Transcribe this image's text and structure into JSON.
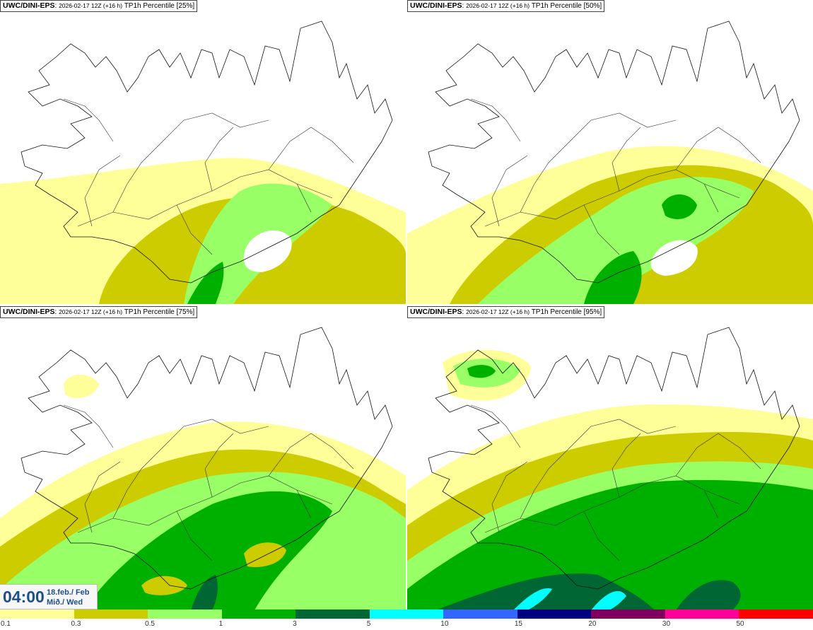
{
  "panels": [
    {
      "model": "UWC/DINI-EPS",
      "run": "2026-02-17 12Z (+16 h)",
      "field": "TP1h Percentile [25%]",
      "level": 0
    },
    {
      "model": "UWC/DINI-EPS",
      "run": "2026-02-17 12Z (+16 h)",
      "field": "TP1h Percentile [50%]",
      "level": 1
    },
    {
      "model": "UWC/DINI-EPS",
      "run": "2026-02-17 12Z (+16 h)",
      "field": "TP1h Percentile [75%]",
      "level": 2
    },
    {
      "model": "UWC/DINI-EPS",
      "run": "2026-02-17 12Z (+16 h)",
      "field": "TP1h Percentile [95%]",
      "level": 3
    }
  ],
  "timebox": {
    "time": "04:00",
    "date_line1": "18.feb./ Feb",
    "date_line2": "Mið./ Wed"
  },
  "legend": {
    "colors": [
      "#ffff99",
      "#cccc00",
      "#99ff66",
      "#00b000",
      "#006633",
      "#00ffff",
      "#3366ff",
      "#000080",
      "#800060",
      "#ff0099",
      "#ff0000"
    ],
    "labels": [
      "0.1",
      "0.3",
      "0.5",
      "1",
      "3",
      "5",
      "10",
      "15",
      "20",
      "30",
      "50"
    ]
  }
}
